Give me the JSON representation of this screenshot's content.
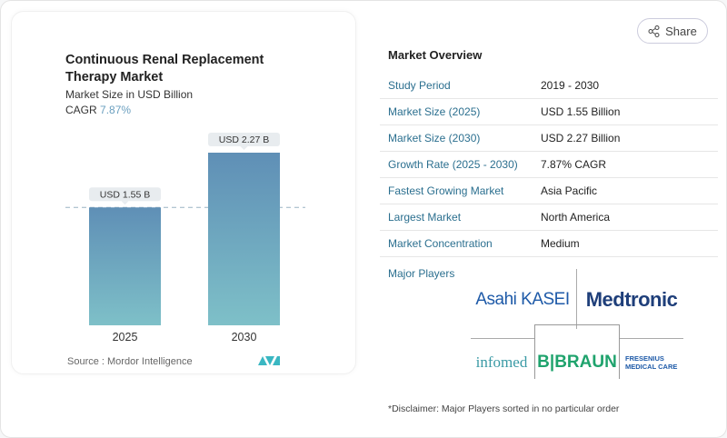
{
  "header": {
    "share_label": "Share",
    "share_icon": "share-icon"
  },
  "card": {
    "title": "Continuous Renal Replacement Therapy Market",
    "subtitle": "Market Size in USD Billion",
    "cagr_label": "CAGR",
    "cagr_value": "7.87%",
    "source": "Source :  Mordor Intelligence",
    "logo": "Mordor Intelligence"
  },
  "chart_data": {
    "type": "bar",
    "categories": [
      "2025",
      "2030"
    ],
    "values": [
      1.55,
      2.27
    ],
    "data_labels": [
      "USD 1.55 B",
      "USD 2.27 B"
    ],
    "title": "Continuous Renal Replacement Therapy Market",
    "ylabel": "Market Size in USD Billion",
    "colors": {
      "top": "#5f8fb6",
      "bottom": "#7ec0c8"
    },
    "reference_line": 1.55,
    "grid": false
  },
  "overview": {
    "title": "Market Overview",
    "rows": [
      {
        "label": "Study Period",
        "value": "2019 - 2030"
      },
      {
        "label": "Market Size (2025)",
        "value": "USD 1.55 Billion"
      },
      {
        "label": "Market Size (2030)",
        "value": "USD 2.27 Billion"
      },
      {
        "label": "Growth Rate (2025 - 2030)",
        "value": "7.87% CAGR"
      },
      {
        "label": "Fastest Growing Market",
        "value": "Asia Pacific"
      },
      {
        "label": "Largest Market",
        "value": "North America"
      },
      {
        "label": "Market Concentration",
        "value": "Medium"
      }
    ],
    "major_players_label": "Major Players",
    "players": [
      "Asahi KASEI",
      "Medtronic",
      "infomed",
      "B|BRAUN",
      "FRESENIUS MEDICAL CARE"
    ],
    "disclaimer": "*Disclaimer: Major Players sorted in no particular order"
  }
}
